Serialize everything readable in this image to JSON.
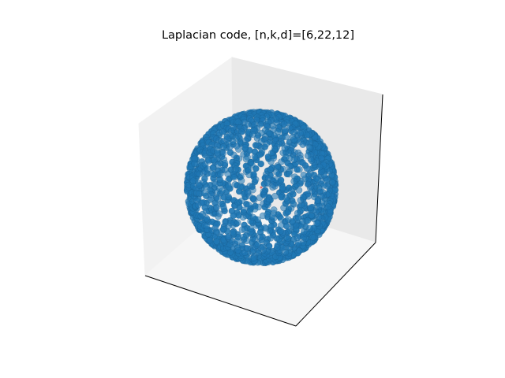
{
  "chart_data": {
    "type": "scatter",
    "projection": "3d",
    "title": "Laplacian code, [n,k,d]=[6,22,12]",
    "xlabel": "",
    "ylabel": "",
    "zlabel": "",
    "ticks": "none",
    "grid": false,
    "legend": "none",
    "shape": "sphere",
    "center": [
      0,
      0,
      0
    ],
    "radius": 1,
    "approx_point_count": 1500,
    "marker_color": "#1f77b4",
    "center_marker_color": "#d62728",
    "pane_color": "#f2f2f2"
  }
}
